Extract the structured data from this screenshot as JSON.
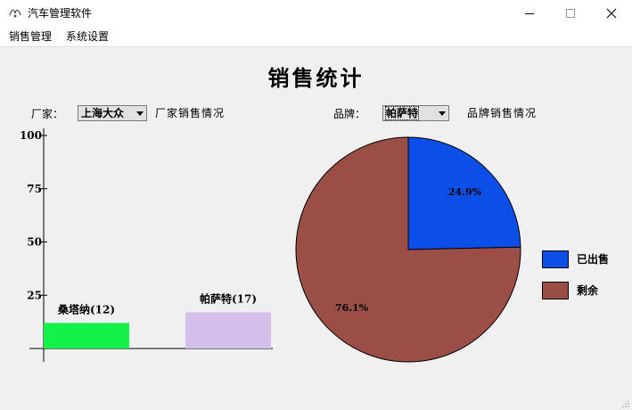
{
  "window": {
    "title": "汽车管理软件",
    "minimize_glyph": "—",
    "maximize_glyph": "☐",
    "close_glyph": "✕"
  },
  "menu": {
    "items": [
      "销售管理",
      "系统设置"
    ]
  },
  "page": {
    "title": "销售统计"
  },
  "filters": {
    "maker_label": "厂家：",
    "maker_value": "上海大众",
    "maker_chart_label": "厂家销售情况",
    "brand_label": "品牌：",
    "brand_value": "帕萨特",
    "brand_chart_label": "品牌销售情况"
  },
  "chart_data": [
    {
      "type": "bar",
      "categories": [
        "桑塔纳",
        "帕萨特"
      ],
      "values": [
        12,
        17
      ],
      "data_labels": [
        "桑塔纳(12)",
        "帕萨特(17)"
      ],
      "colors": [
        "#14f24a",
        "#d3bfea"
      ],
      "ylim": [
        0,
        100
      ],
      "yticks": [
        25,
        50,
        75,
        100
      ],
      "ytick_labels": [
        "25",
        "50",
        "75",
        "100"
      ],
      "grid": false
    },
    {
      "type": "pie",
      "labels": [
        "已出售",
        "剩余"
      ],
      "values": [
        24.9,
        76.1
      ],
      "data_labels": [
        "24.9%",
        "76.1%"
      ],
      "colors": [
        "#0b4fe8",
        "#9b4e45"
      ],
      "legend": "right"
    }
  ]
}
